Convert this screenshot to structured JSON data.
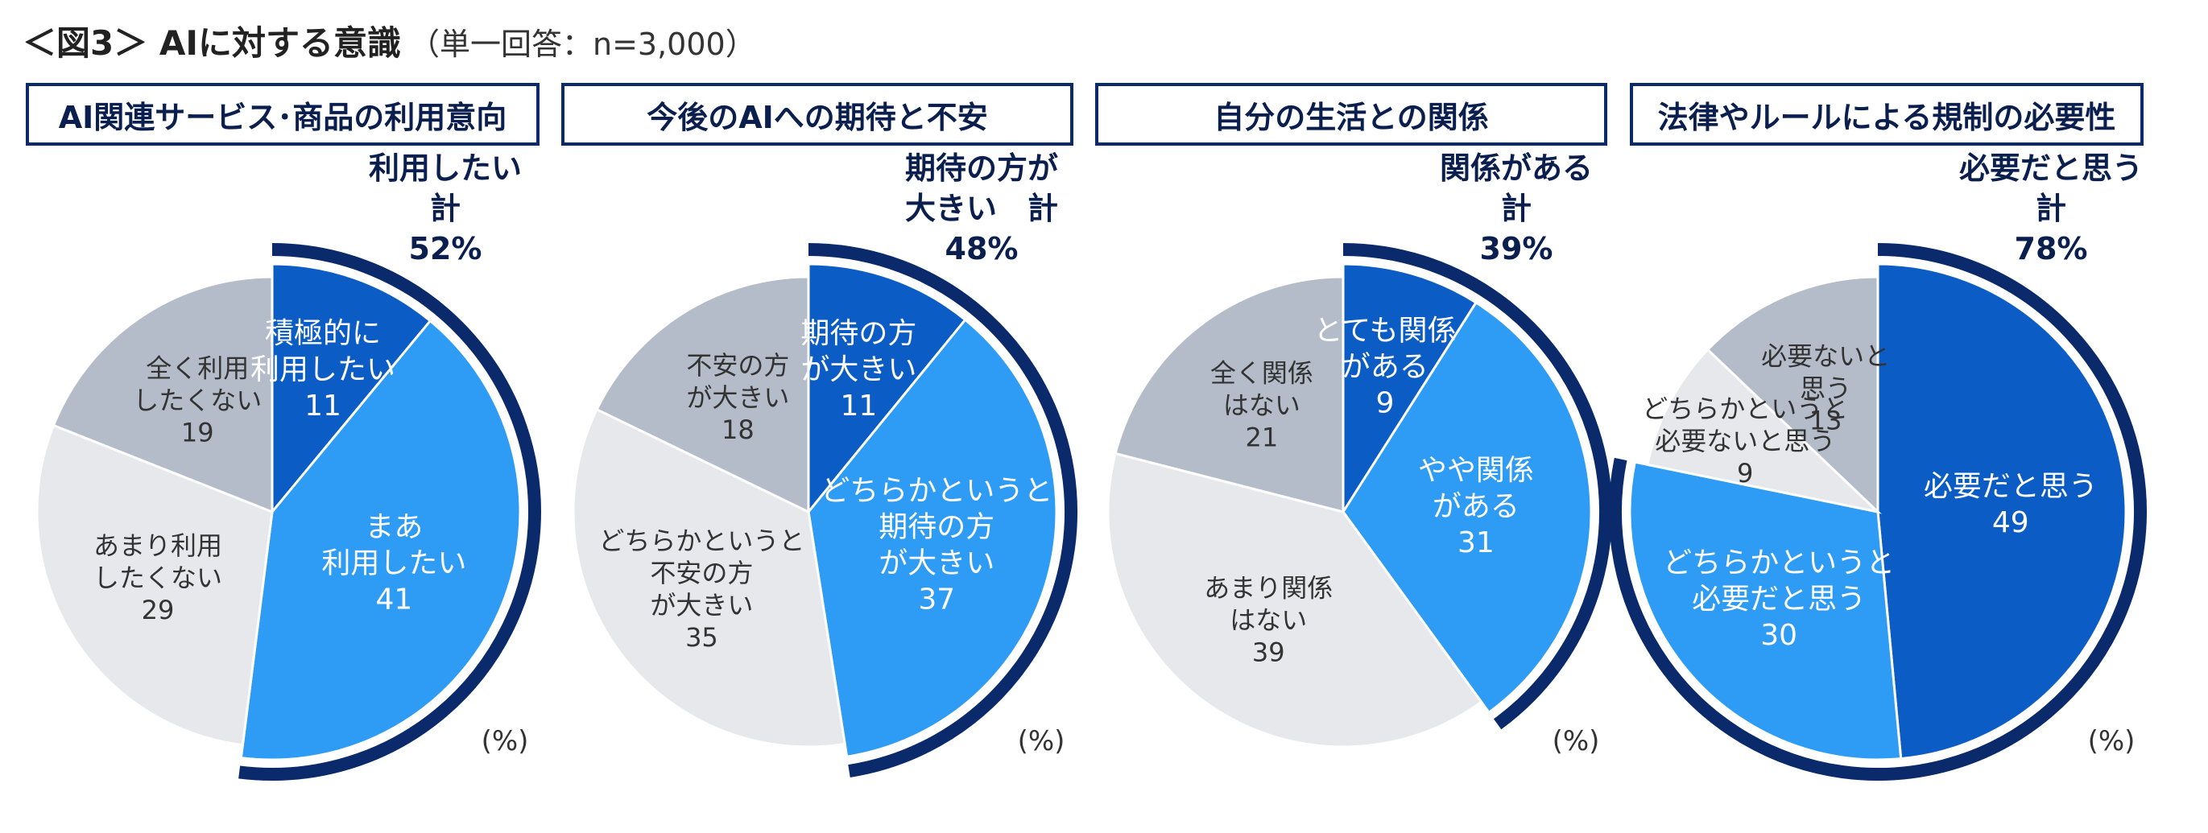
{
  "figure": {
    "title_bold": "＜図3＞ AIに対する意識",
    "title_note": "（単一回答：n=3,000）"
  },
  "colors": {
    "dark_blue": "#0b5cc4",
    "bright_blue": "#2e9bf5",
    "light_gray": "#e6e8ec",
    "gray": "#b3bcc8",
    "arc_navy": "#0b2a6b",
    "total_text": "#0b1f4f"
  },
  "chart_data": [
    {
      "type": "pie",
      "title": "AI関連サービス･商品の利用意向",
      "unit_label": "(%)",
      "total_label": [
        "利用したい",
        "計",
        "52%"
      ],
      "total_value": 52,
      "slices": [
        {
          "label": [
            "積極的に",
            "利用したい"
          ],
          "value": 11,
          "color": "#0b5cc4",
          "text_color": "#ffffff"
        },
        {
          "label": [
            "まあ",
            "利用したい"
          ],
          "value": 41,
          "color": "#2e9bf5",
          "text_color": "#ffffff"
        },
        {
          "label": [
            "あまり利用",
            "したくない"
          ],
          "value": 29,
          "color": "#e6e8ec",
          "text_color": "#333333"
        },
        {
          "label": [
            "全く利用",
            "したくない"
          ],
          "value": 19,
          "color": "#b3bcc8",
          "text_color": "#333333"
        }
      ]
    },
    {
      "type": "pie",
      "title": "今後のAIへの期待と不安",
      "unit_label": "(%)",
      "total_label": [
        "期待の方が",
        "大きい　計",
        "48%"
      ],
      "total_value": 48,
      "slices": [
        {
          "label": [
            "期待の方",
            "が大きい"
          ],
          "value": 11,
          "color": "#0b5cc4",
          "text_color": "#ffffff"
        },
        {
          "label": [
            "どちらかというと",
            "期待の方",
            "が大きい"
          ],
          "value": 37,
          "color": "#2e9bf5",
          "text_color": "#ffffff"
        },
        {
          "label": [
            "どちらかというと",
            "不安の方",
            "が大きい"
          ],
          "value": 35,
          "color": "#e6e8ec",
          "text_color": "#333333"
        },
        {
          "label": [
            "不安の方",
            "が大きい"
          ],
          "value": 18,
          "color": "#b3bcc8",
          "text_color": "#333333"
        }
      ]
    },
    {
      "type": "pie",
      "title": "自分の生活との関係",
      "unit_label": "(%)",
      "total_label": [
        "関係がある",
        "計",
        "39%"
      ],
      "total_value": 39,
      "slices": [
        {
          "label": [
            "とても関係",
            "がある"
          ],
          "value": 9,
          "color": "#0b5cc4",
          "text_color": "#ffffff"
        },
        {
          "label": [
            "やや関係",
            "がある"
          ],
          "value": 31,
          "color": "#2e9bf5",
          "text_color": "#ffffff"
        },
        {
          "label": [
            "あまり関係",
            "はない"
          ],
          "value": 39,
          "color": "#e6e8ec",
          "text_color": "#333333"
        },
        {
          "label": [
            "全く関係",
            "はない"
          ],
          "value": 21,
          "color": "#b3bcc8",
          "text_color": "#333333"
        }
      ]
    },
    {
      "type": "pie",
      "title": "法律やルールによる規制の必要性",
      "unit_label": "(%)",
      "total_label": [
        "必要だと思う",
        "計",
        "78%"
      ],
      "total_value": 78,
      "slices": [
        {
          "label": [
            "必要だと思う"
          ],
          "value": 49,
          "color": "#0b5cc4",
          "text_color": "#ffffff"
        },
        {
          "label": [
            "どちらかというと",
            "必要だと思う"
          ],
          "value": 30,
          "color": "#2e9bf5",
          "text_color": "#ffffff"
        },
        {
          "label": [
            "どちらかというと",
            "必要ないと思う"
          ],
          "value": 9,
          "color": "#e6e8ec",
          "text_color": "#333333"
        },
        {
          "label": [
            "必要ないと",
            "思う"
          ],
          "value": 13,
          "color": "#b3bcc8",
          "text_color": "#333333"
        }
      ]
    }
  ]
}
